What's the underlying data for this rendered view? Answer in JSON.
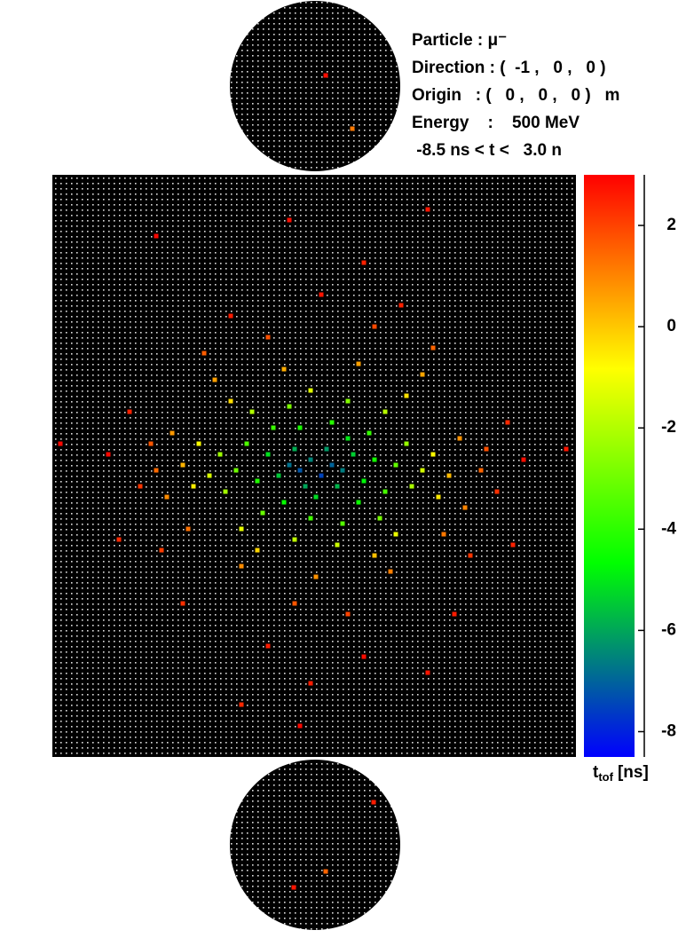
{
  "info": [
    "Particle : μ⁻",
    "Direction : (  -1 ,   0 ,   0 )",
    "Origin   : (   0 ,   0 ,   0 )   m",
    "Energy    :    500 MeV",
    " -8.5 ns < t <   3.0 n"
  ],
  "colorbar": {
    "label": {
      "symbol": "t",
      "subscript": "tof",
      "unit": "[ns]"
    },
    "ylim": [
      -8.5,
      3.0
    ],
    "yticks": [
      -8,
      -6,
      -4,
      -2,
      0,
      2
    ],
    "colormap": [
      "#0000ff",
      "#00ff00",
      "#ffff00",
      "#ff0000"
    ]
  },
  "barrel_hits": {
    "x": [
      44,
      46,
      48,
      50,
      52,
      54,
      47,
      51,
      53,
      45,
      42,
      56,
      49,
      55,
      40,
      58,
      43,
      57,
      38,
      60,
      46,
      52,
      41,
      59,
      36,
      62,
      48,
      54,
      34,
      64,
      39,
      61,
      44,
      55,
      31,
      66,
      32,
      67,
      37,
      62,
      45,
      53,
      29,
      69,
      35,
      64,
      48,
      27,
      71,
      26,
      72,
      33,
      66,
      38,
      60,
      24,
      74,
      22,
      76,
      21,
      77,
      30,
      69,
      43,
      57,
      35,
      63,
      49,
      19,
      80,
      18,
      81,
      25,
      73,
      28,
      71,
      40,
      60,
      45,
      55,
      16,
      83,
      14,
      85,
      20,
      78,
      33,
      65,
      50,
      40,
      58,
      10,
      88,
      1,
      96,
      12,
      86,
      24,
      75,
      44,
      70,
      19,
      58,
      48,
      46,
      35,
      70
    ],
    "y": [
      54,
      55,
      53,
      56,
      54,
      55,
      58,
      51,
      58,
      51,
      56,
      52,
      60,
      49,
      52,
      57,
      61,
      61,
      57,
      53,
      47,
      46,
      47,
      48,
      50,
      59,
      64,
      65,
      55,
      54,
      63,
      64,
      43,
      42,
      52,
      50,
      59,
      58,
      44,
      44,
      68,
      69,
      56,
      55,
      66,
      67,
      40,
      50,
      52,
      58,
      60,
      42,
      41,
      70,
      71,
      54,
      56,
      48,
      49,
      60,
      62,
      38,
      37,
      36,
      35,
      73,
      74,
      75,
      55,
      55,
      50,
      51,
      66,
      67,
      33,
      32,
      30,
      28,
      80,
      82,
      58,
      59,
      44,
      46,
      70,
      71,
      26,
      24,
      22,
      88,
      90,
      52,
      53,
      50,
      51,
      68,
      69,
      80,
      82,
      8,
      6,
      11,
      16,
      95,
      103,
      99,
      93
    ],
    "t": [
      -6.8,
      -7.2,
      -6.5,
      -7.5,
      -7.0,
      -6.6,
      -6.0,
      -6.2,
      -5.8,
      -5.9,
      -5.5,
      -5.4,
      -5.2,
      -5.0,
      -5.1,
      -4.8,
      -4.6,
      -4.5,
      -4.2,
      -4.4,
      -4.3,
      -4.1,
      -3.8,
      -3.9,
      -3.5,
      -3.6,
      -3.7,
      -3.4,
      -3.0,
      -3.2,
      -3.1,
      -2.9,
      -2.8,
      -2.7,
      -2.3,
      -2.4,
      -2.2,
      -2.1,
      -2.0,
      -1.9,
      -1.8,
      -1.6,
      -1.4,
      -1.5,
      -1.2,
      -1.1,
      -1.3,
      -0.9,
      -0.8,
      -0.6,
      -0.5,
      -0.3,
      -0.4,
      -0.2,
      0.1,
      0.3,
      0.2,
      0.7,
      0.8,
      0.9,
      1.0,
      0.6,
      0.5,
      0.4,
      0.6,
      0.9,
      1.1,
      0.8,
      1.4,
      1.5,
      1.7,
      1.8,
      1.3,
      1.2,
      1.6,
      1.5,
      1.8,
      1.9,
      1.7,
      2.0,
      2.2,
      2.3,
      2.5,
      2.4,
      2.1,
      2.2,
      2.6,
      2.5,
      2.7,
      2.6,
      2.8,
      2.9,
      2.8,
      2.9,
      2.7,
      2.4,
      2.5,
      2.3,
      2.6,
      2.8,
      2.7,
      2.9,
      2.5,
      2.6,
      2.9,
      2.4,
      2.7
    ]
  },
  "top_hits": {
    "x": [
      2,
      7
    ],
    "y": [
      -2,
      8
    ],
    "t": [
      2.8,
      1.2
    ]
  },
  "bottom_hits": {
    "x": [
      11,
      -4,
      2
    ],
    "y": [
      -8,
      8,
      5
    ],
    "t": [
      2.6,
      2.7,
      1.5
    ]
  }
}
